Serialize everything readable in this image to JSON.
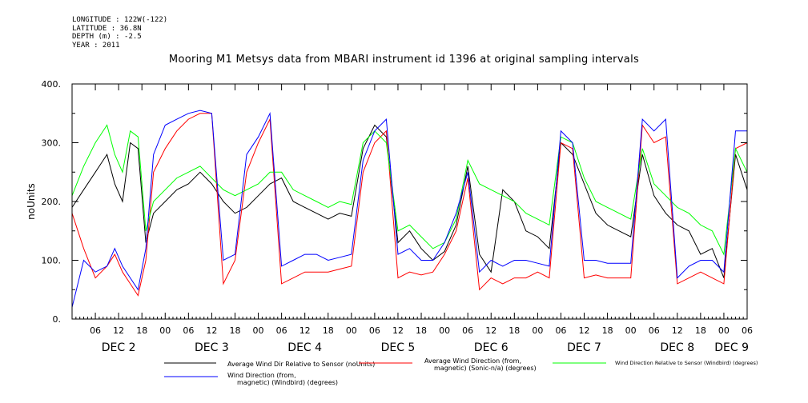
{
  "meta": {
    "longitude": "LONGITUDE : 122W(-122)",
    "latitude": "LATITUDE : 36.8N",
    "depth": "DEPTH (m) : -2.5",
    "year": "YEAR : 2011"
  },
  "chart_data": {
    "type": "line",
    "title": "Mooring M1 Metsys data from MBARI instrument id 1396 at original sampling intervals",
    "ylabel": "noUnits",
    "xlabel": "",
    "ylim": [
      0,
      400
    ],
    "yticks": [
      "0.",
      "100.",
      "200.",
      "300.",
      "400."
    ],
    "xlim_hours": [
      0,
      174
    ],
    "hour_ticks": [
      "06",
      "12",
      "18",
      "00",
      "06",
      "12",
      "18",
      "00",
      "06",
      "12",
      "18",
      "00",
      "06",
      "12",
      "18",
      "00",
      "06",
      "12",
      "18",
      "00",
      "06",
      "12",
      "18",
      "00",
      "06",
      "12",
      "18",
      "00",
      "06",
      "12",
      "18",
      "00"
    ],
    "hour_tick_positions": [
      6,
      12,
      18,
      24,
      30,
      36,
      42,
      48,
      54,
      60,
      66,
      72,
      78,
      84,
      90,
      96,
      102,
      108,
      114,
      120,
      126,
      132,
      138,
      144,
      150,
      156,
      162,
      168,
      174,
      180,
      186,
      192
    ],
    "day_labels": [
      {
        "label": "DEC  2",
        "hour": 12
      },
      {
        "label": "DEC  3",
        "hour": 36
      },
      {
        "label": "DEC  4",
        "hour": 60
      },
      {
        "label": "DEC  5",
        "hour": 84
      },
      {
        "label": "DEC  6",
        "hour": 108
      },
      {
        "label": "DEC  7",
        "hour": 132
      },
      {
        "label": "DEC  8",
        "hour": 156
      },
      {
        "label": "DEC  9",
        "hour": 170
      }
    ],
    "grid": false,
    "legend_position": "bottom",
    "series": [
      {
        "name": "Average Wind Dir Relative to Sensor (noUnits)",
        "color": "#000000",
        "x": [
          0,
          3,
          6,
          9,
          11,
          13,
          15,
          17,
          19,
          21,
          24,
          27,
          30,
          33,
          36,
          39,
          42,
          45,
          48,
          51,
          54,
          57,
          60,
          63,
          66,
          69,
          72,
          75,
          78,
          81,
          84,
          87,
          90,
          93,
          96,
          99,
          102,
          105,
          108,
          111,
          114,
          117,
          120,
          123,
          126,
          129,
          132,
          135,
          138,
          141,
          144,
          147,
          150,
          153,
          156,
          159,
          162,
          165,
          168,
          171,
          174
        ],
        "values": [
          190,
          220,
          250,
          280,
          230,
          200,
          300,
          290,
          130,
          180,
          200,
          220,
          230,
          250,
          230,
          200,
          180,
          190,
          210,
          230,
          240,
          200,
          190,
          180,
          170,
          180,
          175,
          290,
          330,
          310,
          130,
          150,
          120,
          100,
          115,
          160,
          260,
          110,
          80,
          220,
          200,
          150,
          140,
          120,
          300,
          280,
          230,
          180,
          160,
          150,
          140,
          280,
          210,
          180,
          160,
          150,
          110,
          120,
          70,
          280,
          220
        ]
      },
      {
        "name": "Average Wind Direction (from, magnetic) (Sonic-n/a) (degrees)",
        "color": "#ff0000",
        "x": [
          0,
          3,
          6,
          9,
          11,
          13,
          15,
          17,
          19,
          21,
          24,
          27,
          30,
          33,
          36,
          39,
          42,
          45,
          48,
          51,
          54,
          57,
          60,
          63,
          66,
          69,
          72,
          75,
          78,
          81,
          84,
          87,
          90,
          93,
          96,
          99,
          102,
          105,
          108,
          111,
          114,
          117,
          120,
          123,
          126,
          129,
          132,
          135,
          138,
          141,
          144,
          147,
          150,
          153,
          156,
          159,
          162,
          165,
          168,
          171,
          174
        ],
        "values": [
          180,
          120,
          70,
          90,
          110,
          80,
          60,
          40,
          100,
          250,
          290,
          320,
          340,
          350,
          350,
          60,
          100,
          250,
          300,
          340,
          60,
          70,
          80,
          80,
          80,
          85,
          90,
          250,
          300,
          320,
          70,
          80,
          75,
          80,
          110,
          150,
          240,
          50,
          70,
          60,
          70,
          70,
          80,
          70,
          300,
          290,
          70,
          75,
          70,
          70,
          70,
          330,
          300,
          310,
          60,
          70,
          80,
          70,
          60,
          290,
          300
        ]
      },
      {
        "name": "Wind Direction Relative to Sensor (Windbird) (degrees)",
        "color": "#00ff00",
        "x": [
          0,
          3,
          6,
          9,
          11,
          13,
          15,
          17,
          19,
          21,
          24,
          27,
          30,
          33,
          36,
          39,
          42,
          45,
          48,
          51,
          54,
          57,
          60,
          63,
          66,
          69,
          72,
          75,
          78,
          81,
          84,
          87,
          90,
          93,
          96,
          99,
          102,
          105,
          108,
          111,
          114,
          117,
          120,
          123,
          126,
          129,
          132,
          135,
          138,
          141,
          144,
          147,
          150,
          153,
          156,
          159,
          162,
          165,
          168,
          171,
          174
        ],
        "values": [
          210,
          260,
          300,
          330,
          280,
          250,
          320,
          310,
          150,
          200,
          220,
          240,
          250,
          260,
          240,
          220,
          210,
          220,
          230,
          250,
          250,
          220,
          210,
          200,
          190,
          200,
          195,
          300,
          320,
          300,
          150,
          160,
          140,
          120,
          130,
          170,
          270,
          230,
          220,
          210,
          200,
          180,
          170,
          160,
          310,
          300,
          240,
          200,
          190,
          180,
          170,
          290,
          230,
          210,
          190,
          180,
          160,
          150,
          110,
          290,
          250
        ]
      },
      {
        "name": "Wind Direction (from, magnetic) (Windbird) (degrees)",
        "color": "#0000ff",
        "x": [
          0,
          3,
          6,
          9,
          11,
          13,
          15,
          17,
          19,
          21,
          24,
          27,
          30,
          33,
          36,
          39,
          42,
          45,
          48,
          51,
          54,
          57,
          60,
          63,
          66,
          69,
          72,
          75,
          78,
          81,
          84,
          87,
          90,
          93,
          96,
          99,
          102,
          105,
          108,
          111,
          114,
          117,
          120,
          123,
          126,
          129,
          132,
          135,
          138,
          141,
          144,
          147,
          150,
          153,
          156,
          159,
          162,
          165,
          168,
          171,
          174
        ],
        "values": [
          20,
          100,
          80,
          90,
          120,
          90,
          70,
          50,
          120,
          280,
          330,
          340,
          350,
          355,
          350,
          100,
          110,
          280,
          310,
          350,
          90,
          100,
          110,
          110,
          100,
          105,
          110,
          270,
          320,
          340,
          110,
          120,
          100,
          100,
          130,
          180,
          250,
          80,
          100,
          90,
          100,
          100,
          95,
          90,
          320,
          300,
          100,
          100,
          95,
          95,
          95,
          340,
          320,
          340,
          70,
          90,
          100,
          100,
          80,
          320,
          320
        ]
      }
    ]
  }
}
